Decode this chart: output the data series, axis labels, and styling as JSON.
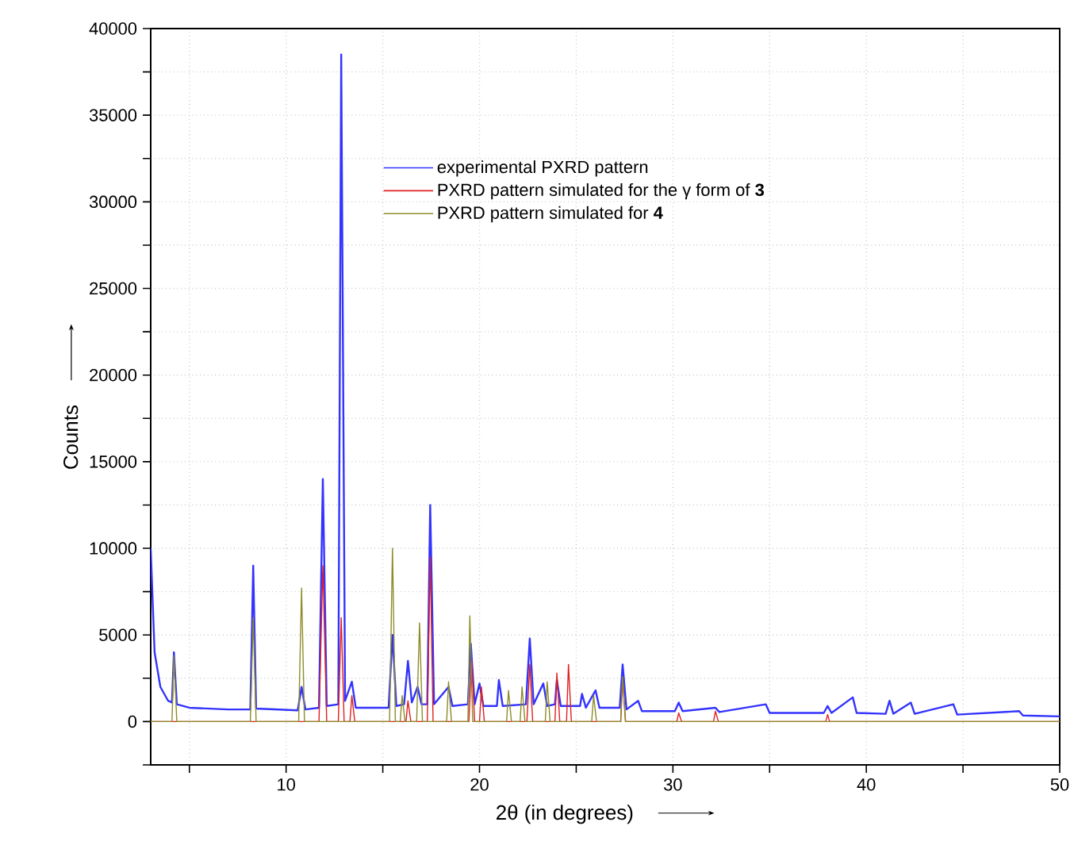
{
  "chart_data": {
    "type": "line",
    "xlabel": "2θ (in degrees)",
    "ylabel": "Counts",
    "xlim": [
      3,
      50
    ],
    "ylim": [
      -2500,
      40000
    ],
    "xticks": [
      {
        "value": 5,
        "label": null
      },
      10,
      {
        "value": 15,
        "label": null
      },
      20,
      {
        "value": 25,
        "label": null
      },
      30,
      {
        "value": 35,
        "label": null
      },
      40,
      {
        "value": 45,
        "label": null
      },
      50
    ],
    "yticks": [
      {
        "value": -2500,
        "label": null
      },
      0,
      {
        "value": 2500,
        "label": null
      },
      5000,
      {
        "value": 7500,
        "label": null
      },
      10000,
      {
        "value": 12500,
        "label": null
      },
      15000,
      {
        "value": 17500,
        "label": null
      },
      20000,
      {
        "value": 22500,
        "label": null
      },
      25000,
      {
        "value": 27500,
        "label": null
      },
      30000,
      {
        "value": 32500,
        "label": null
      },
      35000,
      {
        "value": 37500,
        "label": null
      },
      40000
    ],
    "grid": true,
    "legend": "top",
    "line_style": "solid",
    "marker": "none",
    "series": [
      {
        "name": "experimental PXRD pattern",
        "color": "#3333ff",
        "x": [
          3.0,
          3.2,
          3.5,
          3.9,
          4.1,
          4.2,
          4.35,
          5,
          7,
          8.15,
          8.3,
          8.45,
          10.6,
          10.8,
          11.0,
          11.7,
          11.9,
          12.1,
          12.7,
          12.85,
          13.05,
          13.4,
          13.6,
          15.3,
          15.5,
          15.7,
          16.1,
          16.3,
          16.5,
          16.8,
          17.0,
          17.3,
          17.45,
          17.65,
          18.4,
          18.6,
          19.4,
          19.55,
          19.75,
          20.0,
          20.2,
          20.9,
          21.0,
          21.2,
          22.4,
          22.6,
          22.8,
          23.3,
          23.5,
          23.9,
          24.0,
          24.2,
          25.2,
          25.3,
          25.5,
          26.0,
          26.2,
          27.25,
          27.4,
          27.6,
          28.2,
          28.4,
          30.1,
          30.3,
          30.5,
          32.2,
          32.4,
          34.8,
          35.0,
          37.8,
          38.0,
          38.2,
          39.3,
          39.5,
          41.0,
          41.2,
          41.4,
          42.3,
          42.5,
          44.5,
          44.7,
          47.9,
          48.1,
          50
        ],
        "values": [
          10000,
          4000,
          2000,
          1200,
          1100,
          4000,
          1000,
          800,
          700,
          700,
          9000,
          750,
          650,
          2000,
          700,
          800,
          14000,
          900,
          1000,
          38500,
          1200,
          2300,
          800,
          800,
          5000,
          900,
          1000,
          3500,
          1100,
          2000,
          1000,
          1000,
          12500,
          1000,
          2000,
          900,
          1000,
          4500,
          1000,
          2200,
          900,
          900,
          2400,
          900,
          1000,
          4800,
          1000,
          2200,
          900,
          1000,
          2400,
          900,
          900,
          1600,
          800,
          1800,
          800,
          800,
          3300,
          700,
          1200,
          600,
          600,
          1100,
          600,
          800,
          550,
          1000,
          500,
          500,
          900,
          500,
          1400,
          500,
          450,
          1200,
          450,
          1100,
          450,
          1000,
          400,
          600,
          350,
          300
        ]
      },
      {
        "name": "PXRD pattern simulated for the γ  form of **3**",
        "color": "#e02020",
        "x": [
          3,
          11.7,
          11.9,
          12.1,
          12.7,
          12.85,
          13.0,
          13.3,
          13.4,
          13.55,
          16.2,
          16.3,
          16.45,
          17.3,
          17.45,
          17.6,
          19.45,
          19.6,
          19.75,
          20.0,
          20.1,
          20.25,
          22.45,
          22.6,
          22.75,
          23.9,
          24.0,
          24.15,
          24.5,
          24.6,
          24.75,
          27.3,
          27.4,
          27.55,
          30.2,
          30.3,
          30.45,
          32.1,
          32.2,
          32.35,
          37.9,
          38.0,
          38.1,
          50
        ],
        "values": [
          0,
          0,
          9000,
          0,
          0,
          6000,
          0,
          0,
          1500,
          0,
          0,
          1200,
          0,
          0,
          9500,
          0,
          0,
          3500,
          0,
          0,
          2000,
          0,
          0,
          3300,
          0,
          0,
          2800,
          0,
          0,
          3300,
          0,
          0,
          2500,
          0,
          0,
          500,
          0,
          0,
          600,
          0,
          0,
          400,
          0,
          0
        ]
      },
      {
        "name": "PXRD pattern simulated for **4**",
        "color": "#8c8c2a",
        "x": [
          3,
          4.1,
          4.2,
          4.35,
          8.15,
          8.3,
          8.45,
          10.65,
          10.8,
          10.95,
          15.35,
          15.5,
          15.65,
          15.9,
          16.0,
          16.15,
          16.75,
          16.9,
          17.05,
          18.3,
          18.4,
          18.55,
          19.4,
          19.5,
          19.65,
          21.4,
          21.5,
          21.65,
          22.1,
          22.2,
          22.35,
          23.4,
          23.5,
          23.65,
          25.8,
          25.9,
          26.05,
          27.3,
          27.4,
          27.55,
          50
        ],
        "values": [
          0,
          0,
          3800,
          0,
          0,
          6000,
          0,
          0,
          7700,
          0,
          0,
          10000,
          0,
          0,
          1500,
          0,
          0,
          5700,
          0,
          0,
          2300,
          0,
          0,
          6100,
          0,
          0,
          1800,
          0,
          0,
          2000,
          0,
          0,
          2300,
          0,
          0,
          1500,
          0,
          0,
          2600,
          0,
          0
        ]
      }
    ]
  }
}
